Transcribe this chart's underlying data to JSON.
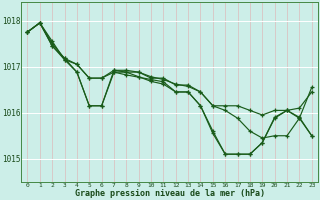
{
  "background_color": "#cceee8",
  "grid_color": "#aaddcc",
  "line_color": "#1a5c1a",
  "xlabel": "Graphe pression niveau de la mer (hPa)",
  "ylim": [
    1014.5,
    1018.4
  ],
  "xlim": [
    -0.5,
    23.5
  ],
  "yticks": [
    1015,
    1016,
    1017,
    1018
  ],
  "xticks": [
    0,
    1,
    2,
    3,
    4,
    5,
    6,
    7,
    8,
    9,
    10,
    11,
    12,
    13,
    14,
    15,
    16,
    17,
    18,
    19,
    20,
    21,
    22,
    23
  ],
  "series": [
    [
      1017.75,
      1017.95,
      1017.55,
      1017.15,
      1017.05,
      1016.75,
      1016.75,
      1016.88,
      1016.88,
      1016.88,
      1016.75,
      1016.75,
      1016.6,
      1016.6,
      1016.45,
      1016.15,
      1016.15,
      1016.15,
      1016.05,
      1015.95,
      1016.05,
      1016.05,
      1016.1,
      1016.45
    ],
    [
      1017.75,
      1017.95,
      1017.45,
      1017.15,
      1016.88,
      1016.15,
      1016.15,
      1016.88,
      1016.82,
      1016.77,
      1016.72,
      1016.67,
      1016.45,
      1016.45,
      1016.15,
      1015.6,
      1015.1,
      1015.1,
      1015.1,
      1015.35,
      1015.9,
      1016.05,
      1015.9,
      1015.5
    ],
    [
      1017.75,
      1017.95,
      1017.45,
      1017.18,
      1016.88,
      1016.15,
      1016.15,
      1016.92,
      1016.88,
      1016.78,
      1016.68,
      1016.62,
      1016.45,
      1016.45,
      1016.15,
      1015.55,
      1015.1,
      1015.1,
      1015.1,
      1015.35,
      1015.88,
      1016.05,
      1015.88,
      1015.5
    ],
    [
      1017.75,
      1017.95,
      1017.5,
      1017.18,
      1017.05,
      1016.75,
      1016.75,
      1016.92,
      1016.92,
      1016.88,
      1016.78,
      1016.72,
      1016.62,
      1016.57,
      1016.45,
      1016.15,
      1016.05,
      1015.88,
      1015.6,
      1015.45,
      1015.5,
      1015.5,
      1015.88,
      1016.55
    ]
  ]
}
